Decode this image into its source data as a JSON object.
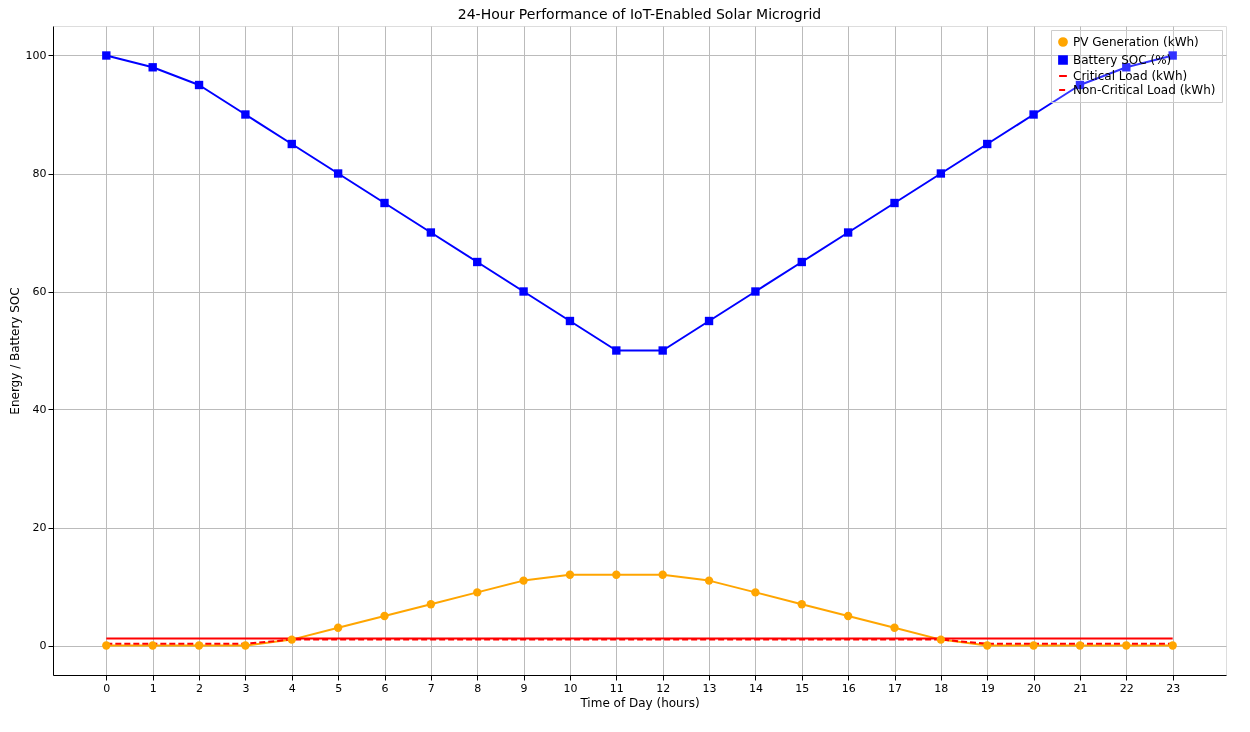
{
  "chart_data": {
    "type": "line",
    "title": "24-Hour Performance of IoT-Enabled Solar Microgrid",
    "xlabel": "Time of Day (hours)",
    "ylabel": "Energy / Battery SOC",
    "x": [
      0,
      1,
      2,
      3,
      4,
      5,
      6,
      7,
      8,
      9,
      10,
      11,
      12,
      13,
      14,
      15,
      16,
      17,
      18,
      19,
      20,
      21,
      22,
      23
    ],
    "series": [
      {
        "name": "PV Generation (kWh)",
        "color": "#ffa500",
        "marker": "circle",
        "line_style": "solid",
        "values": [
          0,
          0,
          0,
          0,
          1,
          3,
          5,
          7,
          9,
          11,
          12,
          12,
          12,
          11,
          9,
          7,
          5,
          3,
          1,
          0,
          0,
          0,
          0,
          0
        ]
      },
      {
        "name": "Battery SOC (%)",
        "color": "#0000ff",
        "marker": "square",
        "line_style": "solid",
        "values": [
          100,
          98,
          95,
          90,
          85,
          80,
          75,
          70,
          65,
          60,
          55,
          50,
          50,
          55,
          60,
          65,
          70,
          75,
          80,
          85,
          90,
          95,
          98,
          100
        ]
      },
      {
        "name": "Critical Load (kWh)",
        "color": "#ff0000",
        "marker": "none",
        "line_style": "solid",
        "values": [
          1.2,
          1.2,
          1.2,
          1.2,
          1.2,
          1.2,
          1.2,
          1.2,
          1.2,
          1.2,
          1.2,
          1.2,
          1.2,
          1.2,
          1.2,
          1.2,
          1.2,
          1.2,
          1.2,
          1.2,
          1.2,
          1.2,
          1.2,
          1.2
        ]
      },
      {
        "name": "Non-Critical Load (kWh)",
        "color": "#ff0000",
        "marker": "none",
        "line_style": "dashed",
        "values": [
          0.3,
          0.3,
          0.3,
          0.3,
          1.0,
          1.0,
          1.0,
          1.0,
          1.0,
          1.0,
          1.0,
          1.0,
          1.0,
          1.0,
          1.0,
          1.0,
          1.0,
          1.0,
          1.0,
          0.3,
          0.3,
          0.3,
          0.3,
          0.3
        ]
      }
    ],
    "xlim": [
      -1.15,
      24.15
    ],
    "ylim": [
      -5,
      105
    ],
    "xticks": [
      0,
      1,
      2,
      3,
      4,
      5,
      6,
      7,
      8,
      9,
      10,
      11,
      12,
      13,
      14,
      15,
      16,
      17,
      18,
      19,
      20,
      21,
      22,
      23
    ],
    "yticks": [
      0,
      20,
      40,
      60,
      80,
      100
    ],
    "grid": true,
    "legend": "top right"
  }
}
